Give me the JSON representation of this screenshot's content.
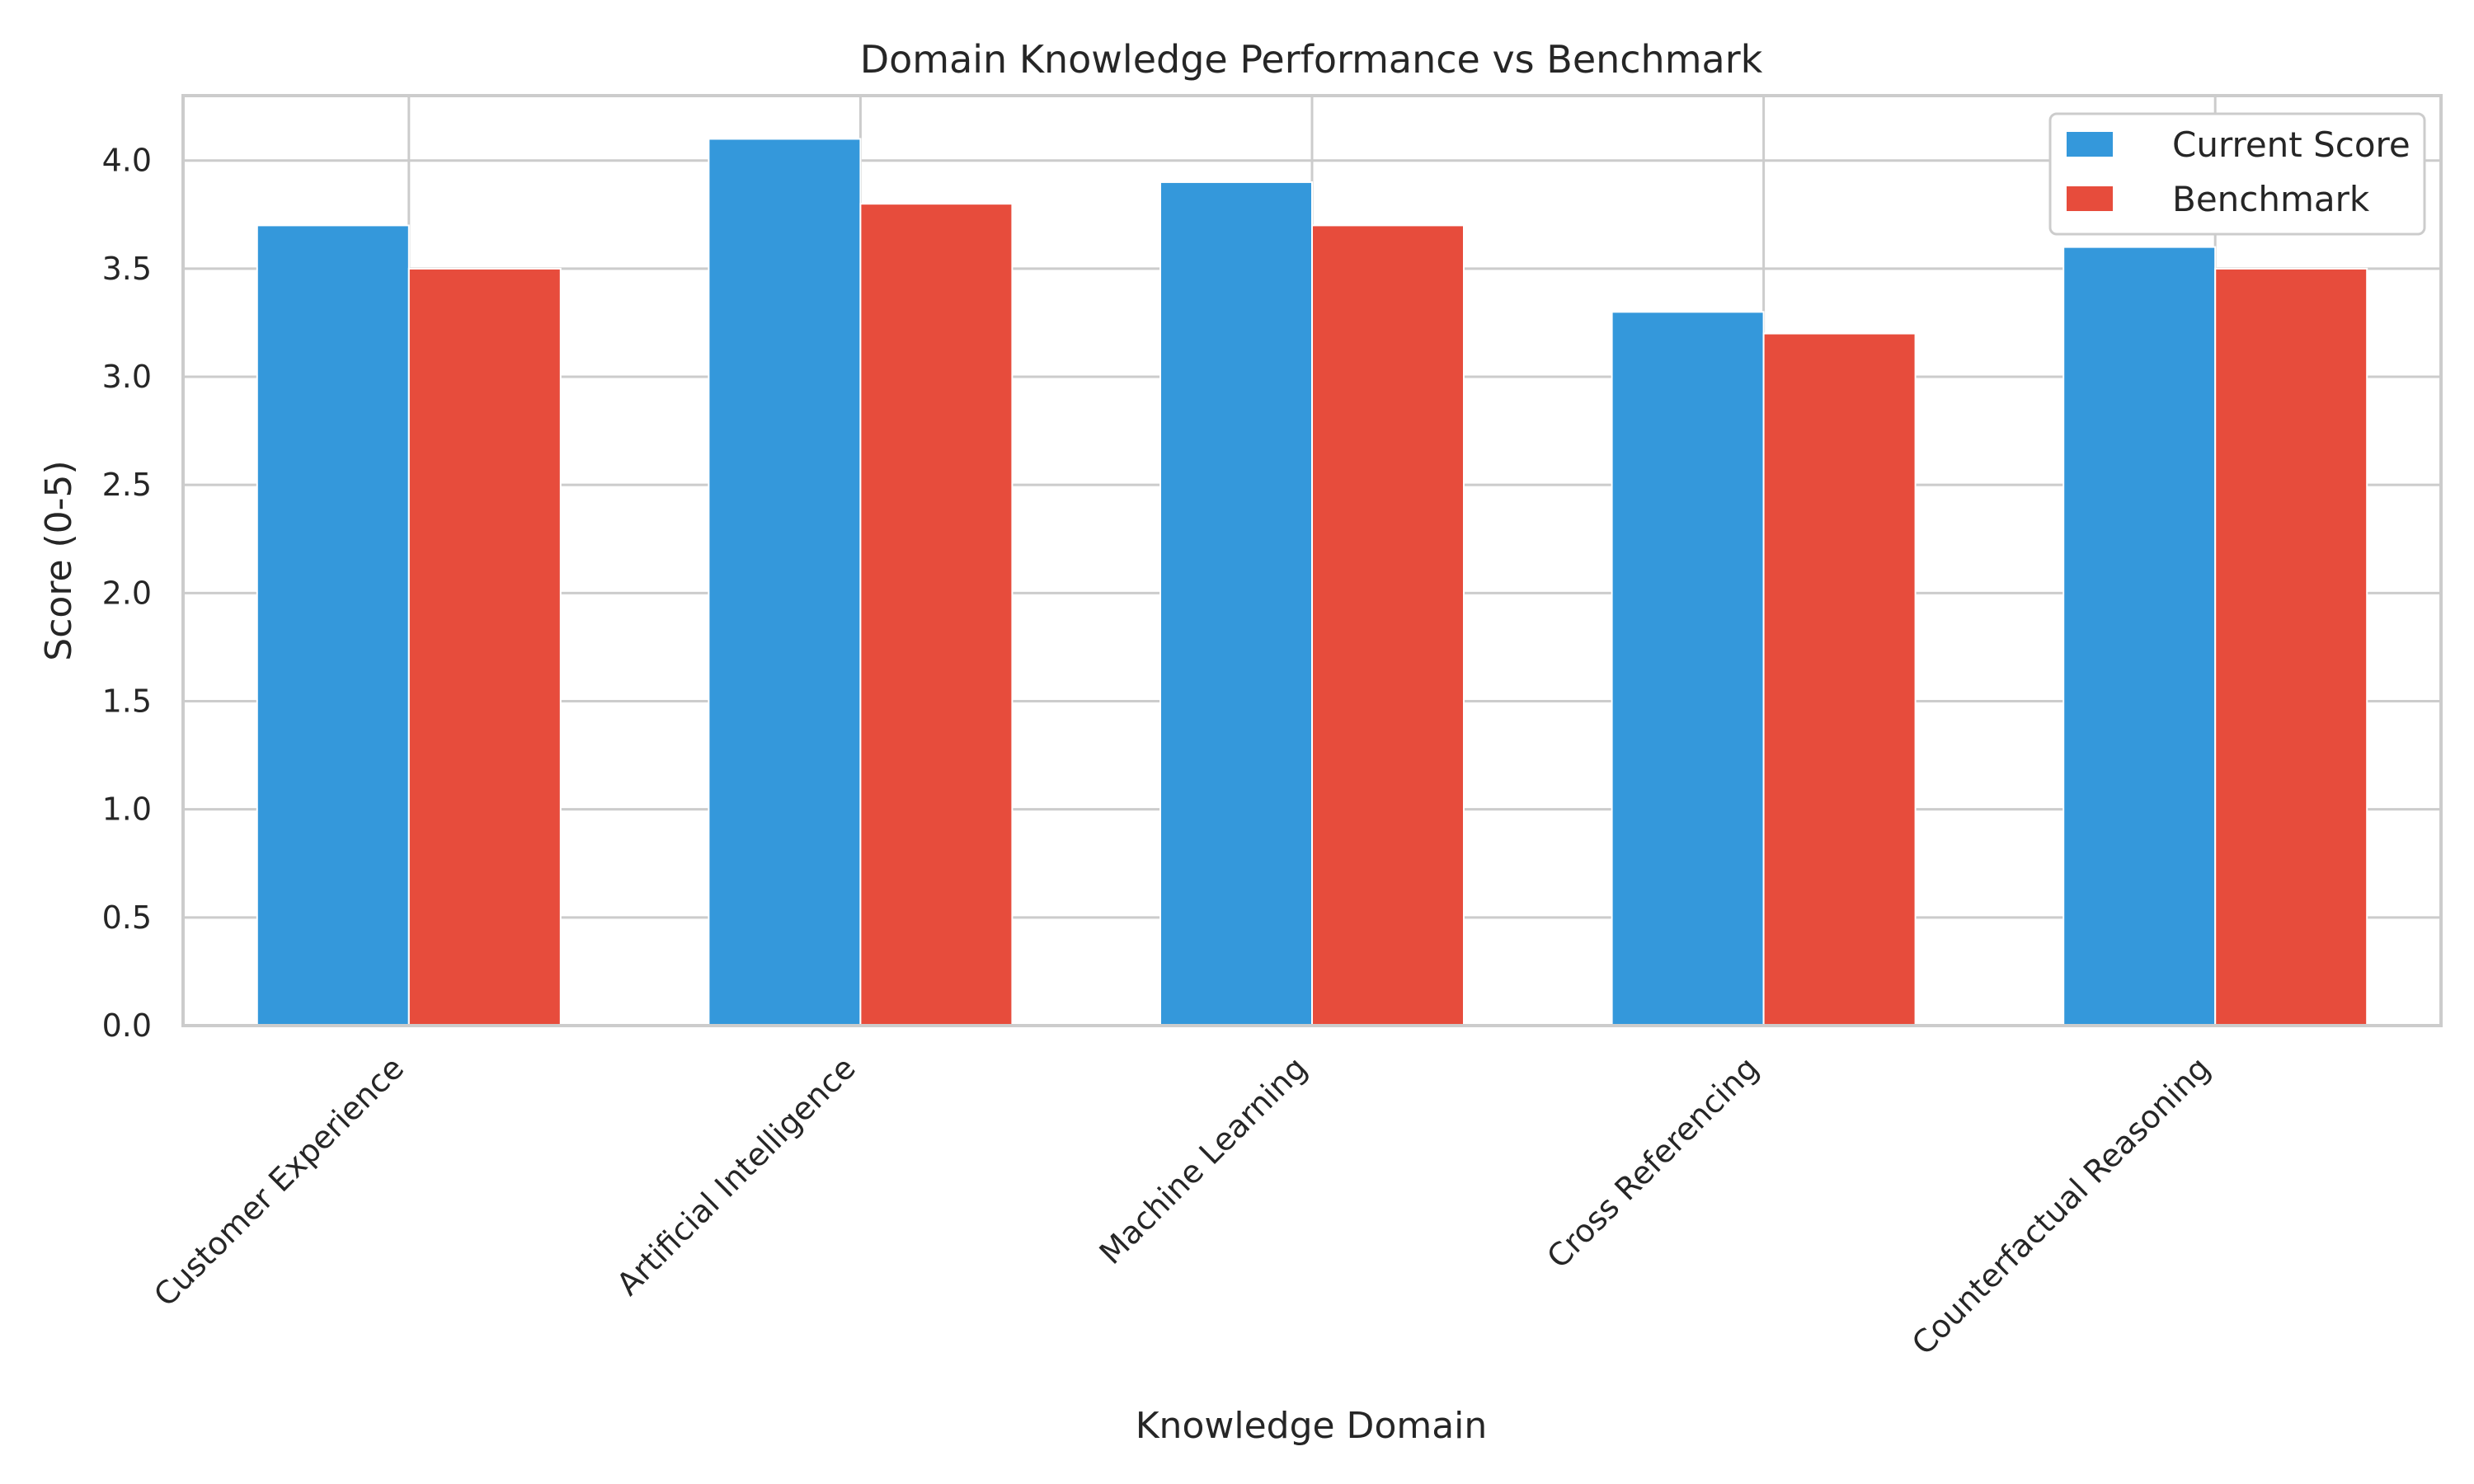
{
  "chart_data": {
    "type": "bar",
    "title": "Domain Knowledge Performance vs Benchmark",
    "xlabel": "Knowledge Domain",
    "ylabel": "Score (0-5)",
    "categories": [
      "Customer Experience",
      "Artificial Intelligence",
      "Machine Learning",
      "Cross Referencing",
      "Counterfactual Reasoning"
    ],
    "series": [
      {
        "name": "Current Score",
        "values": [
          3.7,
          4.1,
          3.9,
          3.3,
          3.6
        ],
        "color": "#3498db"
      },
      {
        "name": "Benchmark",
        "values": [
          3.5,
          3.8,
          3.7,
          3.2,
          3.5
        ],
        "color": "#e74c3c"
      }
    ],
    "ylim": [
      0,
      4.3
    ],
    "yticks": [
      0.0,
      0.5,
      1.0,
      1.5,
      2.0,
      2.5,
      3.0,
      3.5,
      4.0
    ],
    "ytick_labels": [
      "0.0",
      "0.5",
      "1.0",
      "1.5",
      "2.0",
      "2.5",
      "3.0",
      "3.5",
      "4.0"
    ],
    "grid": true,
    "legend_position": "top-right"
  }
}
